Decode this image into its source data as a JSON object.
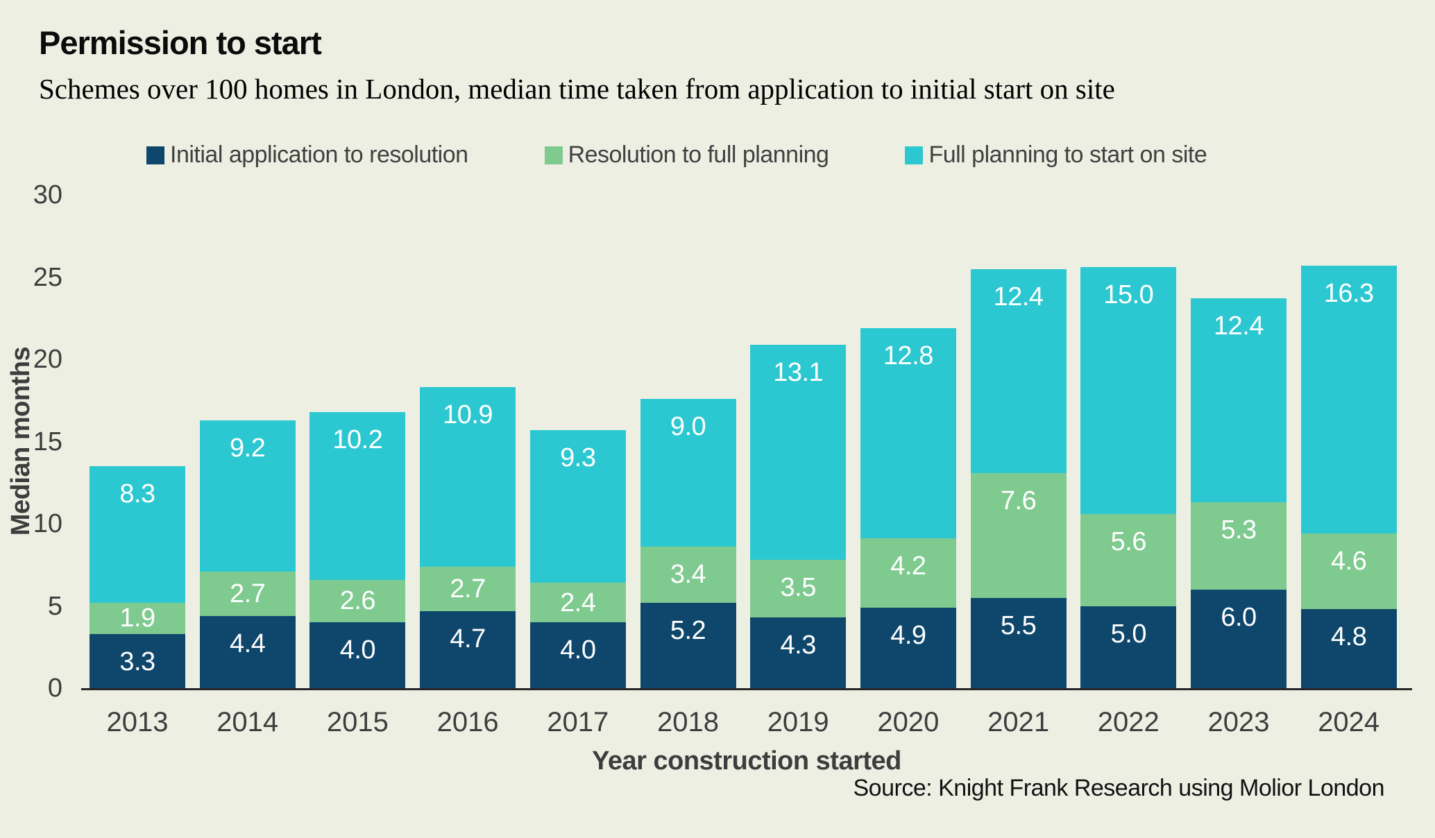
{
  "header": {
    "title": "Permission to start",
    "subtitle": "Schemes over 100 homes in London, median time taken from application to initial start on site"
  },
  "chart_data": {
    "type": "bar",
    "stacked": true,
    "title": "Permission to start",
    "subtitle": "Schemes over 100 homes in London, median time taken from application to initial start on site",
    "categories": [
      "2013",
      "2014",
      "2015",
      "2016",
      "2017",
      "2018",
      "2019",
      "2020",
      "2021",
      "2022",
      "2023",
      "2024"
    ],
    "series": [
      {
        "name": "Initial application to resolution",
        "color": "#0F476C",
        "values": [
          3.3,
          4.4,
          4.0,
          4.7,
          4.0,
          5.2,
          4.3,
          4.9,
          5.5,
          5.0,
          6.0,
          4.8
        ]
      },
      {
        "name": "Resolution to full planning",
        "color": "#7FCA8F",
        "values": [
          1.9,
          2.7,
          2.6,
          2.7,
          2.4,
          3.4,
          3.5,
          4.2,
          7.6,
          5.6,
          5.3,
          4.6
        ]
      },
      {
        "name": "Full planning to start on site",
        "color": "#2CC8D1",
        "values": [
          8.3,
          9.2,
          10.2,
          10.9,
          9.3,
          9.0,
          13.1,
          12.8,
          12.4,
          15.0,
          12.4,
          16.3
        ]
      }
    ],
    "xlabel": "Year construction started",
    "ylabel": "Median months",
    "ylim": [
      0,
      30
    ],
    "yticks": [
      0,
      5,
      10,
      15,
      20,
      25,
      30
    ],
    "value_label_decimals": 1,
    "legend_position": "top",
    "grid": false
  },
  "footer": {
    "source": "Source: Knight Frank Research using Molior London"
  },
  "colors": {
    "background": "#EEEFE3",
    "axis_line": "#262626",
    "tick_text": "#3D3D3D",
    "legend_text": "#404040",
    "bar_label_text": "#FFFFFF"
  }
}
